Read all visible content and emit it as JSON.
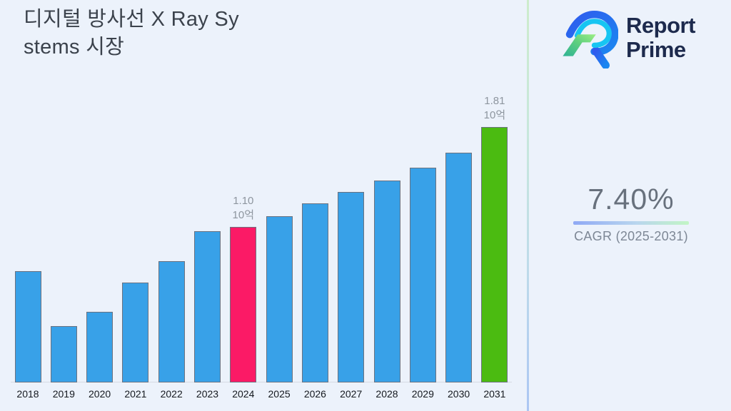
{
  "page": {
    "background": "#ecf2fb"
  },
  "header": {
    "title_line1": "디지털 방사선 X Ray Sy",
    "title_line2": "stems 시장"
  },
  "logo": {
    "name": "Report Prime",
    "line1": "Report",
    "line2": "Prime",
    "text_color": "#1d2a4d"
  },
  "cagr": {
    "value": "7.40%",
    "label": "CAGR (2025-2031)"
  },
  "chart_data": {
    "type": "bar",
    "title": "디지털 방사선 X Ray Systems 시장",
    "unit_label": "10억",
    "categories": [
      "2018",
      "2019",
      "2020",
      "2021",
      "2022",
      "2023",
      "2024",
      "2025",
      "2026",
      "2027",
      "2028",
      "2029",
      "2030",
      "2031"
    ],
    "values": [
      0.79,
      0.4,
      0.5,
      0.71,
      0.86,
      1.07,
      1.1,
      1.18,
      1.27,
      1.35,
      1.43,
      1.52,
      1.63,
      1.81
    ],
    "value_labels": {
      "2024": [
        "1.10",
        "10억"
      ],
      "2031": [
        "1.81",
        "10억"
      ]
    },
    "bar_colors": {
      "default": "#38a1e8",
      "2024": "#fb1a66",
      "2031": "#4bbb11"
    },
    "bar_border_color": "#6b7280",
    "label_color": "#8e969f",
    "xlabel": "",
    "ylabel": "",
    "ylim": [
      0,
      1.9
    ],
    "grid": false,
    "legend": false
  }
}
